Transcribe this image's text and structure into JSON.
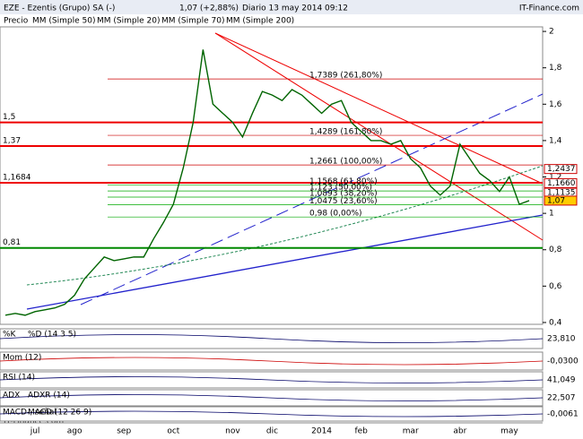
{
  "chart_data": {
    "type": "line",
    "title": "EZE - Ezentis (Grupo) SA (-)",
    "last_price": "1,07 (+2,88%)",
    "subtitle": "Diario 13 may 2014 09:12",
    "source": "IT-Finance.com",
    "watermark": "IT-Finance.com",
    "legend": [
      "Precio",
      "MM (Simple 50)",
      "MM (Simple 20)",
      "MM (Simple 70)",
      "MM (Simple 200)"
    ],
    "categories": [
      null,
      null,
      null,
      "jul",
      null,
      null,
      null,
      "ago",
      null,
      null,
      null,
      null,
      "sep",
      null,
      null,
      null,
      null,
      "oct",
      null,
      null,
      null,
      null,
      null,
      "nov",
      null,
      null,
      null,
      "dic",
      null,
      null,
      null,
      null,
      "2014",
      null,
      null,
      null,
      "feb",
      null,
      null,
      null,
      null,
      "mar",
      null,
      null,
      null,
      null,
      "abr",
      null,
      null,
      null,
      null,
      "may",
      null,
      null
    ],
    "series": [
      {
        "name": "Precio",
        "color": "#006400",
        "values": [
          0.44,
          0.45,
          0.44,
          0.46,
          0.47,
          0.48,
          0.5,
          0.55,
          0.64,
          0.7,
          0.76,
          0.74,
          0.75,
          0.76,
          0.76,
          0.86,
          0.95,
          1.05,
          1.25,
          1.5,
          1.9,
          1.6,
          1.55,
          1.5,
          1.42,
          1.55,
          1.67,
          1.65,
          1.62,
          1.68,
          1.65,
          1.6,
          1.55,
          1.6,
          1.62,
          1.5,
          1.45,
          1.4,
          1.4,
          1.38,
          1.4,
          1.3,
          1.25,
          1.15,
          1.1,
          1.15,
          1.38,
          1.3,
          1.22,
          1.18,
          1.12,
          1.2,
          1.05,
          1.07
        ]
      }
    ],
    "ylim": [
      0.39,
      2.025
    ],
    "yticks": [
      {
        "value": 0.4,
        "label": "0,4"
      },
      {
        "value": 0.6,
        "label": "0,6"
      },
      {
        "value": 0.8,
        "label": "0,8"
      },
      1,
      {
        "value": 1.2,
        "label": "1,2"
      },
      {
        "value": 1.4,
        "label": "1,4"
      },
      {
        "value": 1.6,
        "label": "1,6"
      },
      {
        "value": 1.8,
        "label": "1,8"
      },
      2
    ],
    "levels": [
      {
        "value": 1.5,
        "label": "1,5"
      },
      {
        "value": 1.37,
        "label": "1,37"
      },
      {
        "value": 1.1684,
        "label": "1,1684"
      },
      {
        "value": 0.81,
        "label": "0,81"
      }
    ],
    "fibonacci": [
      {
        "value": 1.7389,
        "label": "1,7389 (261,80%)"
      },
      {
        "value": 1.4289,
        "label": "1,4289 (161,80%)"
      },
      {
        "value": 1.2661,
        "label": "1,2661 (100,00%)"
      },
      {
        "value": 1.1568,
        "label": "1,1568 (61,80%)"
      },
      {
        "value": 1.123,
        "label": "1,123 (50,00%)"
      },
      {
        "value": 1.0893,
        "label": "1,0893 (38,20%)"
      },
      {
        "value": 1.0475,
        "label": "1,0475 (23,60%)"
      },
      {
        "value": 0.98,
        "label": "0,98 (0,00%)"
      }
    ],
    "price_tags": [
      {
        "value": 1.2437,
        "label": "1,2437"
      },
      {
        "value": 1.166,
        "label": "1,1660"
      },
      {
        "value": 1.1135,
        "label": "1,1135"
      },
      {
        "value": 1.07,
        "label": "1,07"
      }
    ],
    "indicators": [
      {
        "names": [
          "%K",
          "%D (14 3 5)"
        ],
        "last": "23,810"
      },
      {
        "names": [
          "Mom (12)"
        ],
        "last": "-0,0300"
      },
      {
        "names": [
          "RSI (14)"
        ],
        "last": "41,049"
      },
      {
        "names": [
          "ADX",
          "ADXR (14)"
        ],
        "last": "22,507"
      },
      {
        "names": [
          "MACD-, señal",
          "MACD (12 26 9)"
        ],
        "last": "-0,0061"
      }
    ]
  }
}
